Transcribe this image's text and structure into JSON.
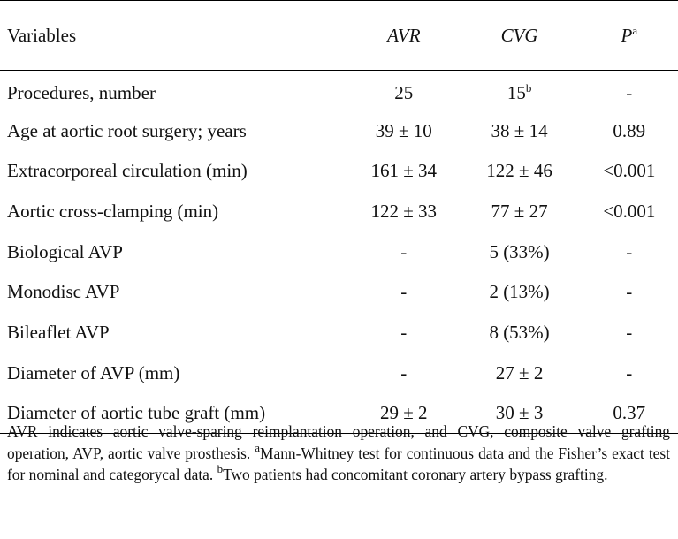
{
  "table": {
    "headers": {
      "variables": "Variables",
      "avr": "AVR",
      "cvg": "CVG",
      "p": "P",
      "p_sup": "a"
    },
    "rows": [
      {
        "label": "Procedures, number",
        "avr": "25",
        "cvg": "15",
        "cvg_sup": "b",
        "p": "-"
      },
      {
        "label": "Age at aortic root surgery; years",
        "avr": "39 ± 10",
        "cvg": "38 ± 14",
        "cvg_sup": "",
        "p": "0.89"
      },
      {
        "label": "Extracorporeal circulation (min)",
        "avr": "161 ± 34",
        "cvg": "122 ± 46",
        "cvg_sup": "",
        "p": "<0.001"
      },
      {
        "label": "Aortic cross-clamping (min)",
        "avr": "122 ± 33",
        "cvg": "77 ± 27",
        "cvg_sup": "",
        "p": "<0.001"
      },
      {
        "label": "Biological AVP",
        "avr": "-",
        "cvg": "5 (33%)",
        "cvg_sup": "",
        "p": "-"
      },
      {
        "label": "Monodisc AVP",
        "avr": "-",
        "cvg": "2 (13%)",
        "cvg_sup": "",
        "p": "-"
      },
      {
        "label": "Bileaflet AVP",
        "avr": "-",
        "cvg": "8 (53%)",
        "cvg_sup": "",
        "p": "-"
      },
      {
        "label": "Diameter of AVP (mm)",
        "avr": "-",
        "cvg": "27 ± 2",
        "cvg_sup": "",
        "p": "-"
      },
      {
        "label": "Diameter of aortic tube graft (mm)",
        "avr": "29 ± 2",
        "cvg": "30 ± 3",
        "cvg_sup": "",
        "p": "0.37"
      }
    ]
  },
  "footnote": {
    "text1": "AVR indicates aortic valve-sparing reimplantation operation, and CVG, composite valve grafting operation, AVP, aortic valve prosthesis. ",
    "sup_a": "a",
    "text2": "Mann-Whitney test for continuous data and the Fisher’s exact test for nominal and categorycal data. ",
    "sup_b": "b",
    "text3": "Two patients had concomitant coronary artery bypass grafting."
  }
}
